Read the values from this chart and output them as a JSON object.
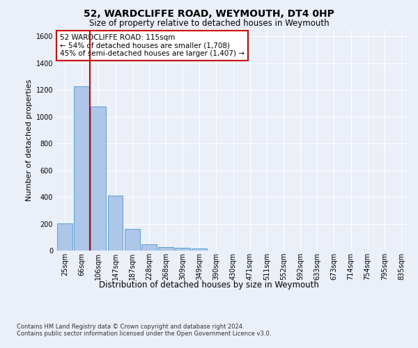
{
  "title1": "52, WARDCLIFFE ROAD, WEYMOUTH, DT4 0HP",
  "title2": "Size of property relative to detached houses in Weymouth",
  "xlabel": "Distribution of detached houses by size in Weymouth",
  "ylabel": "Number of detached properties",
  "footnote": "Contains HM Land Registry data © Crown copyright and database right 2024.\nContains public sector information licensed under the Open Government Licence v3.0.",
  "categories": [
    "25sqm",
    "66sqm",
    "106sqm",
    "147sqm",
    "187sqm",
    "228sqm",
    "268sqm",
    "309sqm",
    "349sqm",
    "390sqm",
    "430sqm",
    "471sqm",
    "511sqm",
    "552sqm",
    "592sqm",
    "633sqm",
    "673sqm",
    "714sqm",
    "754sqm",
    "795sqm",
    "835sqm"
  ],
  "values": [
    205,
    1225,
    1075,
    410,
    160,
    45,
    27,
    20,
    15,
    0,
    0,
    0,
    0,
    0,
    0,
    0,
    0,
    0,
    0,
    0,
    0
  ],
  "bar_color": "#aec6e8",
  "bar_edge_color": "#5a9fd4",
  "vline_color": "#cc0000",
  "annotation_text": "52 WARDCLIFFE ROAD: 115sqm\n← 54% of detached houses are smaller (1,708)\n45% of semi-detached houses are larger (1,407) →",
  "annotation_box_color": "#ffffff",
  "annotation_box_edge": "#cc0000",
  "ylim": [
    0,
    1650
  ],
  "yticks": [
    0,
    200,
    400,
    600,
    800,
    1000,
    1200,
    1400,
    1600
  ],
  "bg_color": "#eaeff8",
  "plot_bg_color": "#eaeff8",
  "grid_color": "#ffffff",
  "title1_fontsize": 10,
  "title2_fontsize": 8.5,
  "ylabel_fontsize": 8,
  "xlabel_fontsize": 8.5,
  "tick_fontsize": 7,
  "footnote_fontsize": 6,
  "annot_fontsize": 7.5
}
